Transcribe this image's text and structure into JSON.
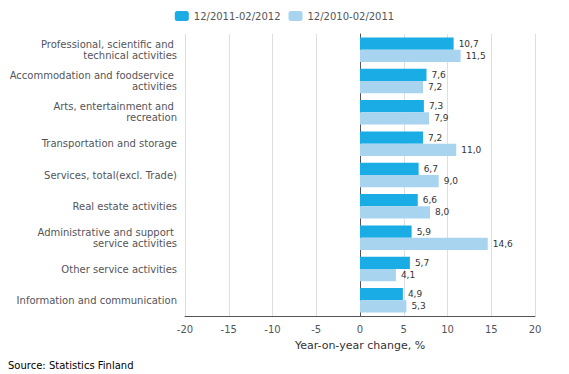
{
  "chart_data": {
    "type": "bar",
    "orientation": "horizontal",
    "xlabel": "Year-on-year change, %",
    "annotations": [
      "Source: Statistics Finland"
    ],
    "categories": [
      "Professional, scientific and technical activities",
      "Accommodation and foodservice activities",
      "Arts, entertainment and recreation",
      "Transportation and storage",
      "Services, total(excl. Trade)",
      "Real estate activities",
      "Administrative and support service activities",
      "Other service activities",
      "Information and communication"
    ],
    "series": [
      {
        "name": "12/2011-02/2012",
        "color": "#1aace4",
        "values": [
          10.7,
          7.6,
          7.3,
          7.2,
          6.7,
          6.6,
          5.9,
          5.7,
          4.9
        ],
        "value_labels": [
          "10,7",
          "7,6",
          "7,3",
          "7,2",
          "6,7",
          "6,6",
          "5,9",
          "5,7",
          "4,9"
        ]
      },
      {
        "name": "12/2010-02/2011",
        "color": "#a8d4f0",
        "values": [
          11.5,
          7.2,
          7.9,
          11.0,
          9.0,
          8.0,
          14.6,
          4.1,
          5.3
        ],
        "value_labels": [
          "11,5",
          "7,2",
          "7,9",
          "11,0",
          "9,0",
          "8,0",
          "14,6",
          "4,1",
          "5,3"
        ]
      }
    ],
    "xlim": [
      -20,
      20
    ],
    "xticks": [
      -20,
      -15,
      -10,
      -5,
      0,
      5,
      10,
      15,
      20
    ],
    "grid": true,
    "legend": "top",
    "data_labels": true
  }
}
